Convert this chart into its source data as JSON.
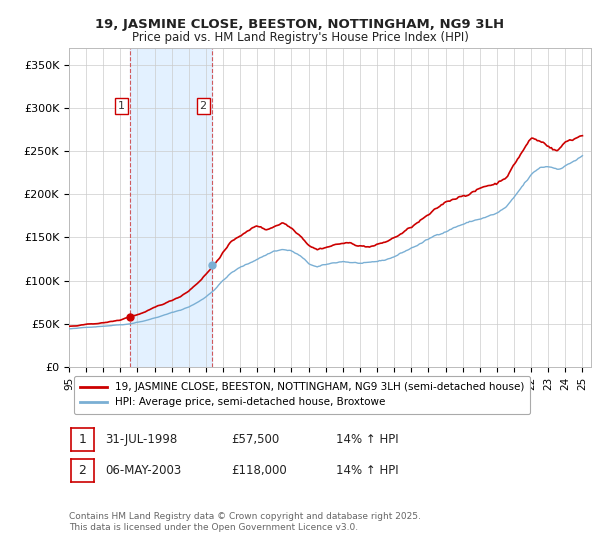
{
  "title": "19, JASMINE CLOSE, BEESTON, NOTTINGHAM, NG9 3LH",
  "subtitle": "Price paid vs. HM Land Registry's House Price Index (HPI)",
  "ylabel_ticks": [
    "£0",
    "£50K",
    "£100K",
    "£150K",
    "£200K",
    "£250K",
    "£300K",
    "£350K"
  ],
  "ytick_values": [
    0,
    50000,
    100000,
    150000,
    200000,
    250000,
    300000,
    350000
  ],
  "ylim": [
    0,
    370000
  ],
  "sale1_year_decimal": 1998.58,
  "sale1_price": 57500,
  "sale2_year_decimal": 2003.34,
  "sale2_price": 118000,
  "legend_property": "19, JASMINE CLOSE, BEESTON, NOTTINGHAM, NG9 3LH (semi-detached house)",
  "legend_hpi": "HPI: Average price, semi-detached house, Broxtowe",
  "footnote": "Contains HM Land Registry data © Crown copyright and database right 2025.\nThis data is licensed under the Open Government Licence v3.0.",
  "line_color_property": "#cc0000",
  "line_color_hpi": "#7aafd4",
  "shade_color": "#ddeeff",
  "marker_color": "#cc0000",
  "marker_color2": "#7aafd4",
  "table_row1": [
    "1",
    "31-JUL-1998",
    "£57,500",
    "14% ↑ HPI"
  ],
  "table_row2": [
    "2",
    "06-MAY-2003",
    "£118,000",
    "14% ↑ HPI"
  ],
  "background_color": "#ffffff",
  "xlim_start": 1995,
  "xlim_end": 2025.5,
  "xtick_years": [
    1995,
    1996,
    1997,
    1998,
    1999,
    2000,
    2001,
    2002,
    2003,
    2004,
    2005,
    2006,
    2007,
    2008,
    2009,
    2010,
    2011,
    2012,
    2013,
    2014,
    2015,
    2016,
    2017,
    2018,
    2019,
    2020,
    2021,
    2022,
    2023,
    2024,
    2025
  ],
  "hpi_knots": [
    1995.0,
    1995.5,
    1996.0,
    1996.5,
    1997.0,
    1997.5,
    1998.0,
    1998.5,
    1999.0,
    1999.5,
    2000.0,
    2000.5,
    2001.0,
    2001.5,
    2002.0,
    2002.5,
    2003.0,
    2003.5,
    2004.0,
    2004.5,
    2005.0,
    2005.5,
    2006.0,
    2006.5,
    2007.0,
    2007.5,
    2008.0,
    2008.5,
    2009.0,
    2009.5,
    2010.0,
    2010.5,
    2011.0,
    2011.5,
    2012.0,
    2012.5,
    2013.0,
    2013.5,
    2014.0,
    2014.5,
    2015.0,
    2015.5,
    2016.0,
    2016.5,
    2017.0,
    2017.5,
    2018.0,
    2018.5,
    2019.0,
    2019.5,
    2020.0,
    2020.5,
    2021.0,
    2021.5,
    2022.0,
    2022.5,
    2023.0,
    2023.5,
    2024.0,
    2024.5,
    2025.0
  ],
  "hpi_values": [
    44000,
    44500,
    45500,
    46500,
    47500,
    48500,
    49500,
    50500,
    53000,
    55000,
    58000,
    61000,
    64000,
    67000,
    71000,
    76000,
    83000,
    92000,
    103000,
    112000,
    118000,
    122000,
    128000,
    133000,
    138000,
    140000,
    138000,
    132000,
    122000,
    118000,
    120000,
    122000,
    124000,
    123000,
    122000,
    121000,
    122000,
    124000,
    128000,
    133000,
    138000,
    143000,
    148000,
    153000,
    158000,
    163000,
    167000,
    170000,
    173000,
    176000,
    179000,
    185000,
    195000,
    208000,
    220000,
    228000,
    230000,
    228000,
    232000,
    238000,
    243000
  ],
  "prop_knots": [
    1995.0,
    1995.5,
    1996.0,
    1996.5,
    1997.0,
    1997.5,
    1998.0,
    1998.5,
    1999.0,
    1999.5,
    2000.0,
    2000.5,
    2001.0,
    2001.5,
    2002.0,
    2002.5,
    2003.0,
    2003.5,
    2004.0,
    2004.5,
    2005.0,
    2005.5,
    2006.0,
    2006.5,
    2007.0,
    2007.5,
    2008.0,
    2008.5,
    2009.0,
    2009.5,
    2010.0,
    2010.5,
    2011.0,
    2011.5,
    2012.0,
    2012.5,
    2013.0,
    2013.5,
    2014.0,
    2014.5,
    2015.0,
    2015.5,
    2016.0,
    2016.5,
    2017.0,
    2017.5,
    2018.0,
    2018.5,
    2019.0,
    2019.5,
    2020.0,
    2020.5,
    2021.0,
    2021.5,
    2022.0,
    2022.5,
    2023.0,
    2023.5,
    2024.0,
    2024.5,
    2025.0
  ],
  "prop_values": [
    47000,
    47500,
    48500,
    49500,
    50500,
    52000,
    53500,
    57500,
    60000,
    63000,
    67000,
    71000,
    75000,
    80000,
    87000,
    96000,
    107000,
    118000,
    133000,
    144000,
    152000,
    157000,
    163000,
    158000,
    163000,
    168000,
    162000,
    155000,
    145000,
    140000,
    143000,
    146000,
    148000,
    147000,
    145000,
    144000,
    146000,
    149000,
    154000,
    160000,
    166000,
    173000,
    179000,
    185000,
    192000,
    197000,
    202000,
    206000,
    210000,
    214000,
    217000,
    225000,
    240000,
    257000,
    272000,
    268000,
    264000,
    258000,
    268000,
    273000,
    278000
  ]
}
